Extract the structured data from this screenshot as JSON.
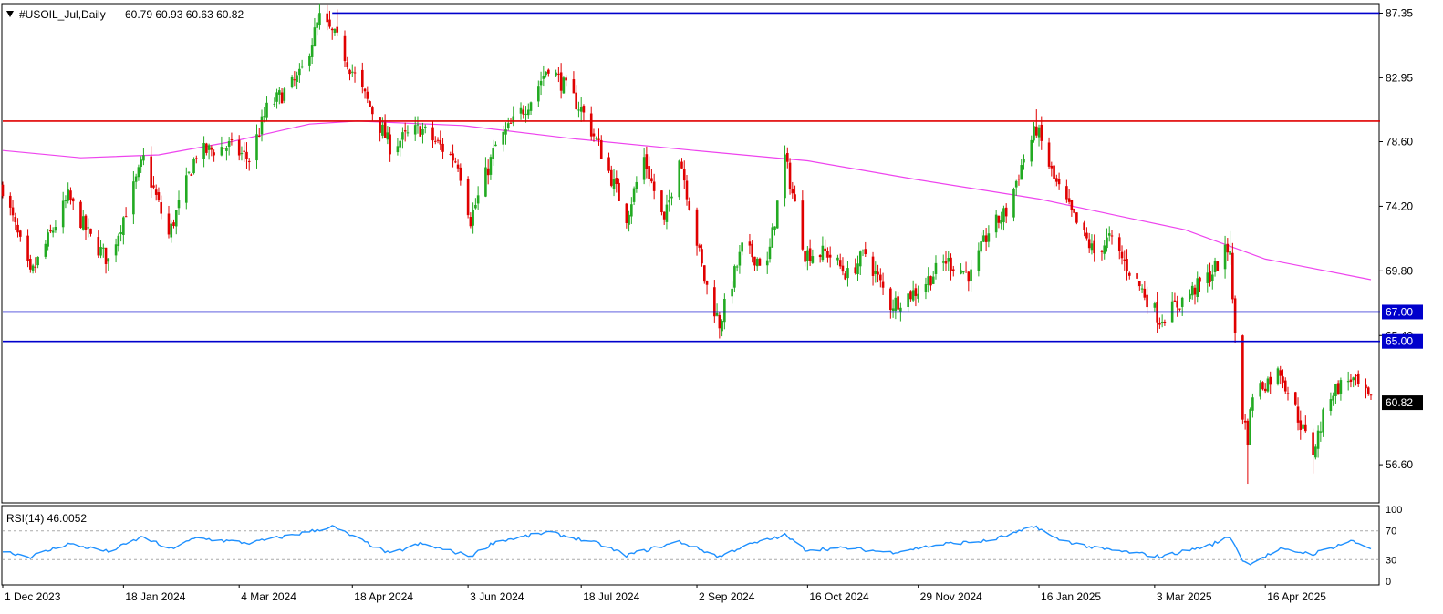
{
  "header": {
    "symbol": "#USOIL_Jul,Daily",
    "ohlc": "60.79 60.93 60.63 60.82"
  },
  "rsi_header": "RSI(14) 46.0052",
  "colors": {
    "bull": "#22aa22",
    "bear": "#e00000",
    "ma": "#ee44ee",
    "resistance_red": "#e00000",
    "support_blue": "#0000cc",
    "rsi_line": "#1e90ff",
    "price_label_bg": "#000000"
  },
  "chart_data": [
    {
      "type": "candlestick",
      "title": "#USOIL_Jul,Daily",
      "ylim": [
        54.0,
        88.0
      ],
      "y_ticks": [
        "87.35",
        "82.95",
        "78.60",
        "74.20",
        "69.80",
        "65.40",
        "56.60"
      ],
      "x_ticks": [
        "1 Dec 2023",
        "18 Jan 2024",
        "4 Mar 2024",
        "18 Apr 2024",
        "3 Jun 2024",
        "18 Jul 2024",
        "2 Sep 2024",
        "16 Oct 2024",
        "29 Nov 2024",
        "16 Jan 2025",
        "3 Mar 2025",
        "16 Apr 2025"
      ],
      "last_price": "60.82",
      "levels": [
        {
          "price": 87.35,
          "color": "#0000cc",
          "label": "",
          "from_date": "2024-04-10"
        },
        {
          "price": 80.0,
          "color": "#e00000",
          "label": ""
        },
        {
          "price": 67.0,
          "color": "#0000cc",
          "label": "67.00"
        },
        {
          "price": 65.0,
          "color": "#0000cc",
          "label": "65.00"
        }
      ],
      "moving_average": [
        [
          "2023-12-01",
          78.0
        ],
        [
          "2024-01-01",
          77.5
        ],
        [
          "2024-02-01",
          77.7
        ],
        [
          "2024-03-01",
          78.6
        ],
        [
          "2024-04-01",
          79.8
        ],
        [
          "2024-04-20",
          80.0
        ],
        [
          "2024-06-01",
          79.7
        ],
        [
          "2024-07-15",
          78.8
        ],
        [
          "2024-09-01",
          78.0
        ],
        [
          "2024-10-16",
          77.3
        ],
        [
          "2024-11-29",
          76.0
        ],
        [
          "2025-01-16",
          74.7
        ],
        [
          "2025-02-15",
          73.6
        ],
        [
          "2025-03-15",
          72.6
        ],
        [
          "2025-04-16",
          70.6
        ],
        [
          "2025-05-28",
          69.2
        ]
      ],
      "path": [
        [
          "2023-12-01",
          75.5
        ],
        [
          "2023-12-12",
          69.4
        ],
        [
          "2023-12-27",
          74.8
        ],
        [
          "2024-01-05",
          72.0
        ],
        [
          "2024-01-12",
          70.5
        ],
        [
          "2024-01-26",
          77.4
        ],
        [
          "2024-02-05",
          72.2
        ],
        [
          "2024-02-16",
          77.8
        ],
        [
          "2024-02-29",
          78.3
        ],
        [
          "2024-03-08",
          77.4
        ],
        [
          "2024-03-15",
          80.8
        ],
        [
          "2024-03-28",
          83.0
        ],
        [
          "2024-04-05",
          87.0
        ],
        [
          "2024-04-12",
          85.5
        ],
        [
          "2024-04-22",
          82.0
        ],
        [
          "2024-05-03",
          78.3
        ],
        [
          "2024-05-15",
          79.5
        ],
        [
          "2024-05-30",
          77.2
        ],
        [
          "2024-06-04",
          73.3
        ],
        [
          "2024-06-14",
          78.3
        ],
        [
          "2024-06-28",
          81.5
        ],
        [
          "2024-07-05",
          83.8
        ],
        [
          "2024-07-18",
          80.8
        ],
        [
          "2024-07-25",
          78.3
        ],
        [
          "2024-08-05",
          73.5
        ],
        [
          "2024-08-12",
          77.5
        ],
        [
          "2024-08-20",
          73.0
        ],
        [
          "2024-08-26",
          77.8
        ],
        [
          "2024-09-05",
          69.2
        ],
        [
          "2024-09-11",
          66.2
        ],
        [
          "2024-09-20",
          71.3
        ],
        [
          "2024-09-30",
          70.2
        ],
        [
          "2024-10-07",
          77.5
        ],
        [
          "2024-10-15",
          71.0
        ],
        [
          "2024-10-24",
          71.0
        ],
        [
          "2024-11-01",
          69.5
        ],
        [
          "2024-11-08",
          71.0
        ],
        [
          "2024-11-18",
          67.5
        ],
        [
          "2024-11-29",
          68.5
        ],
        [
          "2024-12-10",
          70.5
        ],
        [
          "2024-12-20",
          69.5
        ],
        [
          "2024-12-27",
          72.5
        ],
        [
          "2025-01-03",
          73.8
        ],
        [
          "2025-01-10",
          77.5
        ],
        [
          "2025-01-15",
          79.5
        ],
        [
          "2025-01-22",
          76.0
        ],
        [
          "2025-01-31",
          73.0
        ],
        [
          "2025-02-07",
          71.0
        ],
        [
          "2025-02-13",
          72.0
        ],
        [
          "2025-02-26",
          68.5
        ],
        [
          "2025-03-05",
          66.5
        ],
        [
          "2025-03-12",
          67.5
        ],
        [
          "2025-03-25",
          69.5
        ],
        [
          "2025-04-02",
          71.5
        ],
        [
          "2025-04-03",
          67.5
        ],
        [
          "2025-04-07",
          60.0
        ],
        [
          "2025-04-09",
          58.5
        ],
        [
          "2025-04-11",
          61.5
        ],
        [
          "2025-04-22",
          63.0
        ],
        [
          "2025-05-02",
          58.5
        ],
        [
          "2025-05-05",
          57.5
        ],
        [
          "2025-05-12",
          61.5
        ],
        [
          "2025-05-20",
          62.5
        ],
        [
          "2025-05-28",
          60.82
        ]
      ],
      "high_extremes": [
        [
          "2024-04-12",
          87.6
        ],
        [
          "2025-01-15",
          80.8
        ],
        [
          "2025-04-02",
          72.5
        ]
      ],
      "low_extremes": [
        [
          "2025-04-09",
          55.3
        ],
        [
          "2025-05-05",
          56.0
        ],
        [
          "2024-09-11",
          65.2
        ]
      ]
    },
    {
      "type": "line",
      "title": "RSI(14) 46.0052",
      "ylim": [
        0,
        100
      ],
      "y_ticks": [
        "100",
        "70",
        "30",
        "0"
      ],
      "levels": [
        70,
        30
      ],
      "series": [
        {
          "values": [
            [
              "2023-12-01",
              42
            ],
            [
              "2023-12-12",
              34
            ],
            [
              "2023-12-27",
              52
            ],
            [
              "2024-01-12",
              41
            ],
            [
              "2024-01-26",
              62
            ],
            [
              "2024-02-05",
              44
            ],
            [
              "2024-02-16",
              60
            ],
            [
              "2024-03-08",
              53
            ],
            [
              "2024-03-28",
              66
            ],
            [
              "2024-04-10",
              76
            ],
            [
              "2024-04-22",
              56
            ],
            [
              "2024-05-03",
              38
            ],
            [
              "2024-05-15",
              52
            ],
            [
              "2024-06-04",
              35
            ],
            [
              "2024-06-14",
              55
            ],
            [
              "2024-07-05",
              68
            ],
            [
              "2024-07-25",
              52
            ],
            [
              "2024-08-05",
              36
            ],
            [
              "2024-08-26",
              55
            ],
            [
              "2024-09-11",
              34
            ],
            [
              "2024-09-20",
              48
            ],
            [
              "2024-10-07",
              64
            ],
            [
              "2024-10-15",
              44
            ],
            [
              "2024-11-01",
              46
            ],
            [
              "2024-11-18",
              40
            ],
            [
              "2024-12-10",
              52
            ],
            [
              "2024-12-27",
              56
            ],
            [
              "2025-01-15",
              76
            ],
            [
              "2025-01-22",
              60
            ],
            [
              "2025-02-07",
              46
            ],
            [
              "2025-02-26",
              38
            ],
            [
              "2025-03-05",
              34
            ],
            [
              "2025-03-25",
              50
            ],
            [
              "2025-04-02",
              62
            ],
            [
              "2025-04-07",
              30
            ],
            [
              "2025-04-09",
              24
            ],
            [
              "2025-04-22",
              44
            ],
            [
              "2025-05-05",
              38
            ],
            [
              "2025-05-20",
              56
            ],
            [
              "2025-05-28",
              46
            ]
          ]
        }
      ]
    }
  ]
}
